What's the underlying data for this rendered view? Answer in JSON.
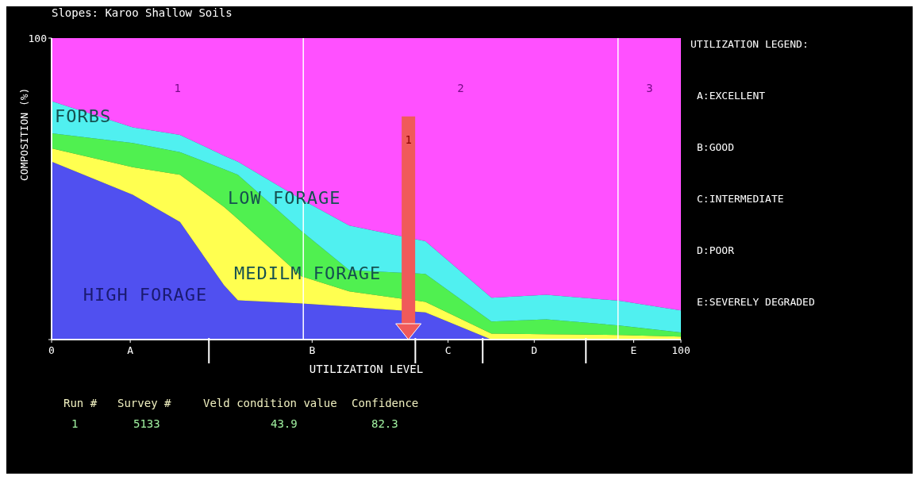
{
  "chart_data": {
    "type": "area",
    "stacked": true,
    "title": "Slopes: Karoo Shallow Soils",
    "xlabel": "UTILIZATION LEVEL",
    "ylabel": "COMPOSITION (%)",
    "x": [
      0,
      12.9,
      20.4,
      27.4,
      29.6,
      39.7,
      47.3,
      59.4,
      69.9,
      78.6,
      90.2,
      100
    ],
    "series": [
      {
        "name": "HIGH FORAGE",
        "color": "#5050f0",
        "values": [
          59,
          48,
          39,
          18,
          13,
          12,
          10.9,
          9,
          0,
          0,
          0,
          0
        ]
      },
      {
        "name": "MEDILM FORAGE",
        "color": "#ffff50",
        "values": [
          4.4,
          9.2,
          15.7,
          26,
          27,
          9,
          5.1,
          3.5,
          2,
          1.8,
          1.5,
          1
        ]
      },
      {
        "name": "LOW FORAGE",
        "color": "#50f050",
        "values": [
          5,
          8,
          7.5,
          12.5,
          14.7,
          15,
          7,
          9.3,
          4,
          4.9,
          3.2,
          1.4
        ]
      },
      {
        "name": "FORBS",
        "color": "#50f0f0",
        "values": [
          10.7,
          5.2,
          5.7,
          4.5,
          4.3,
          10.5,
          14.8,
          10.8,
          7.9,
          8.2,
          8.2,
          7.3
        ]
      },
      {
        "color": "#ff50ff",
        "values": [
          20.9,
          29.6,
          32.1,
          39,
          41,
          53.5,
          62.2,
          67.4,
          86.1,
          85.1,
          87.1,
          90.3
        ]
      }
    ],
    "xlim": [
      0,
      100
    ],
    "ylim": [
      0,
      100
    ],
    "xticks": [
      0,
      {
        "value": 12.5,
        "label": "A"
      },
      {
        "value": 25,
        "label": null
      },
      {
        "value": 41.4,
        "label": "B"
      },
      {
        "value": 57.8,
        "label": null
      },
      {
        "value": 63,
        "label": "C"
      },
      {
        "value": 68.5,
        "label": null
      },
      {
        "value": 76.7,
        "label": "D"
      },
      {
        "value": 84.9,
        "label": null
      },
      {
        "value": 92.5,
        "label": "E"
      },
      100
    ],
    "yticks": [
      {
        "value": 0,
        "label": null
      },
      100
    ],
    "ref_lines": [
      {
        "axis": "x",
        "value": 56.7,
        "color": "#f05a5a"
      },
      {
        "axis": "x",
        "value": 40,
        "color": "#ffffff"
      },
      {
        "axis": "x",
        "value": 90,
        "color": "#ffffff"
      }
    ],
    "annotations": [
      "1",
      "1",
      "2",
      "3",
      "UTILIZATION LEGEND:",
      "A:EXCELLENT",
      "B:GOOD",
      "C:INTERMEDIATE",
      "D:POOR",
      "E:SEVERELY DEGRADED",
      "Run #",
      "Survey #",
      "Veld condition value",
      "Confidence",
      "1",
      "5133",
      "43.9",
      "82.3"
    ],
    "grid": false,
    "legend": false
  }
}
